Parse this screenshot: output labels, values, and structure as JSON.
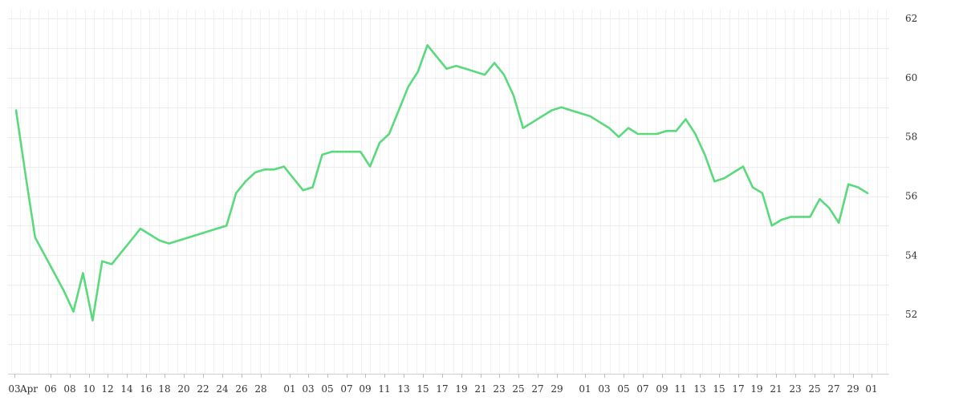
{
  "chart_data": {
    "type": "line",
    "title": "",
    "xlabel": "",
    "ylabel": "",
    "ylim": [
      50,
      62.3
    ],
    "y_ticks": [
      52,
      54,
      56,
      58,
      60,
      62
    ],
    "grid": true,
    "y_axis_side": "right",
    "x_tick_labels": [
      "03",
      "Apr",
      "06",
      "08",
      "10",
      "12",
      "14",
      "16",
      "18",
      "20",
      "22",
      "24",
      "26",
      "28",
      "01",
      "03",
      "05",
      "07",
      "09",
      "11",
      "13",
      "15",
      "17",
      "19",
      "21",
      "23",
      "25",
      "27",
      "29",
      "01",
      "03",
      "05",
      "07",
      "09",
      "11",
      "13",
      "15",
      "17",
      "19",
      "21",
      "23",
      "25",
      "27",
      "29",
      "01"
    ],
    "line_color": "#5ad97d",
    "series": [
      {
        "x": [
          0,
          1,
          2,
          3,
          4,
          5,
          6,
          7,
          8,
          9,
          10,
          11,
          12,
          13,
          14,
          15,
          16,
          17,
          18,
          19,
          20,
          21,
          22,
          23,
          24,
          25,
          26,
          27,
          28,
          29,
          30,
          31,
          32,
          33,
          34,
          35,
          36,
          37,
          38,
          39,
          40,
          41,
          42,
          43,
          44,
          45,
          46,
          47,
          48,
          49,
          50,
          51,
          52,
          53,
          54,
          55,
          56,
          57,
          58,
          59,
          60,
          61,
          62,
          63,
          64,
          65,
          66,
          67,
          68,
          69,
          70,
          71,
          72,
          73,
          74,
          75,
          76,
          77,
          78,
          79,
          80,
          81,
          82,
          83,
          84,
          85,
          86,
          87,
          88,
          89
        ],
        "values": [
          58.9,
          56.7,
          54.6,
          54.0,
          53.4,
          52.8,
          52.1,
          53.4,
          51.8,
          53.8,
          53.7,
          54.1,
          54.5,
          54.9,
          54.7,
          54.5,
          54.4,
          54.5,
          54.6,
          54.7,
          54.8,
          54.9,
          55.0,
          56.1,
          56.5,
          56.8,
          56.9,
          56.9,
          57.0,
          56.6,
          56.2,
          56.3,
          57.4,
          57.5,
          57.5,
          57.5,
          57.5,
          57.0,
          57.8,
          58.1,
          58.9,
          59.7,
          60.2,
          61.1,
          60.7,
          60.3,
          60.4,
          60.3,
          60.2,
          60.1,
          60.5,
          60.1,
          59.4,
          58.3,
          58.5,
          58.7,
          58.9,
          59.0,
          58.9,
          58.8,
          58.7,
          58.5,
          58.3,
          58.0,
          58.3,
          58.1,
          58.1,
          58.1,
          58.2,
          58.2,
          58.6,
          58.1,
          57.4,
          56.5,
          56.6,
          56.8,
          57.0,
          56.3,
          56.1,
          55.0,
          55.2,
          55.3,
          55.3,
          55.3,
          55.9,
          55.6,
          55.1,
          56.4,
          56.3,
          56.1
        ]
      }
    ]
  }
}
